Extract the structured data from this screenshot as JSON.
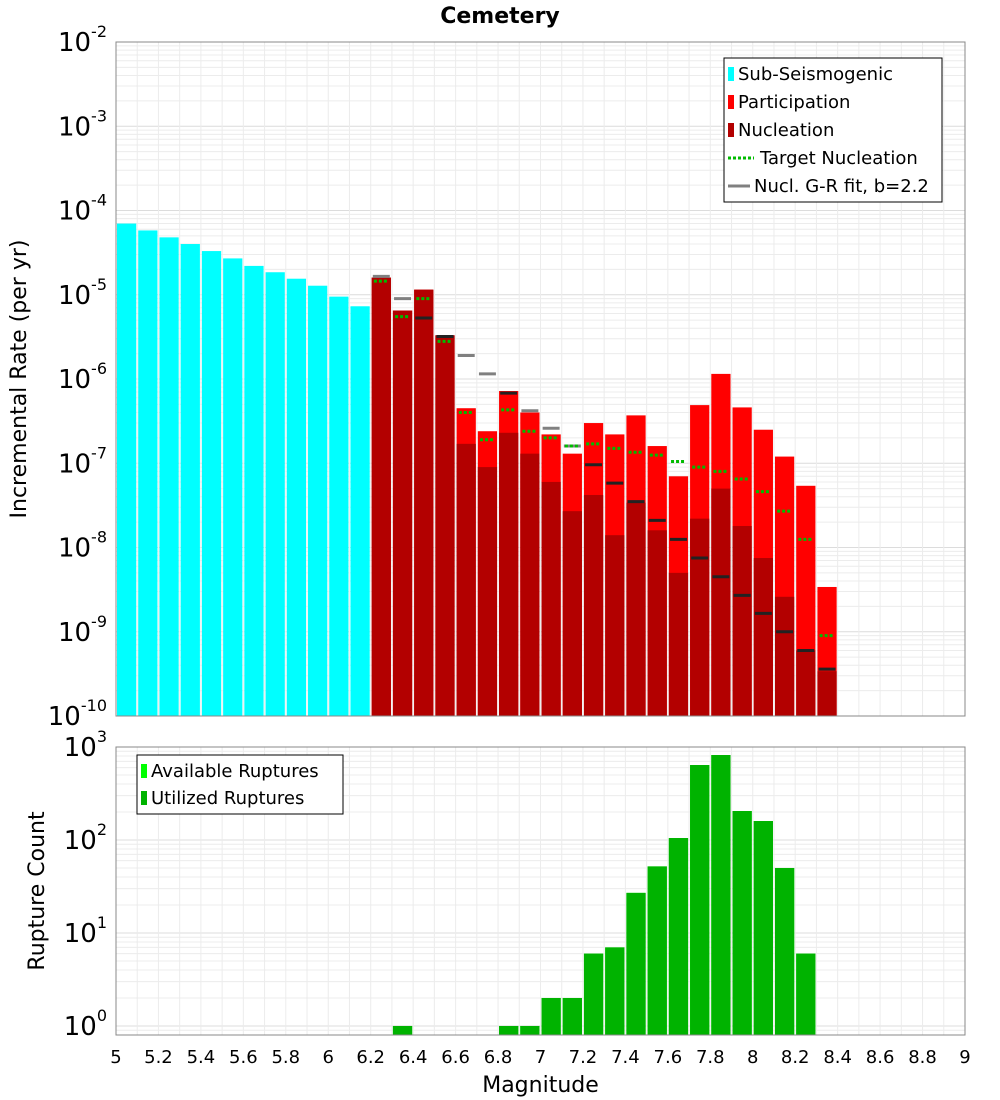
{
  "chart_data": [
    {
      "type": "bar",
      "title": "Cemetery",
      "xlabel": "",
      "ylabel": "Incremental Rate (per yr)",
      "yscale": "log",
      "ylim": [
        1e-10,
        0.01
      ],
      "xlim": [
        5,
        9
      ],
      "bar_width": 0.1,
      "grid": true,
      "legend_position": "top-right",
      "colors": {
        "sub_seismogenic": "#00ffff",
        "participation": "#ff0000",
        "nucleation": "#b30000",
        "target_nucleation": "#00bb00",
        "gr_fit": "#808080",
        "gr_fit_dark": "#222222"
      },
      "legend": [
        {
          "key": "sub_seismogenic",
          "label": "Sub-Seismogenic",
          "style": "bar"
        },
        {
          "key": "participation",
          "label": "Participation",
          "style": "bar"
        },
        {
          "key": "nucleation",
          "label": "Nucleation",
          "style": "bar"
        },
        {
          "key": "target_nucleation",
          "label": "Target Nucleation",
          "style": "dotted"
        },
        {
          "key": "gr_fit",
          "label": "Nucl. G-R fit, b=2.2",
          "style": "line"
        }
      ],
      "series": [
        {
          "name": "Sub-Seismogenic",
          "x": [
            5.05,
            5.15,
            5.25,
            5.35,
            5.45,
            5.55,
            5.65,
            5.75,
            5.85,
            5.95,
            6.05,
            6.15
          ],
          "values": [
            7e-05,
            5.8e-05,
            4.8e-05,
            4e-05,
            3.3e-05,
            2.7e-05,
            2.2e-05,
            1.85e-05,
            1.55e-05,
            1.28e-05,
            9.5e-06,
            7.3e-06
          ]
        },
        {
          "name": "Participation",
          "x": [
            6.25,
            6.35,
            6.45,
            6.55,
            6.65,
            6.75,
            6.85,
            6.95,
            7.05,
            7.15,
            7.25,
            7.35,
            7.45,
            7.55,
            7.65,
            7.75,
            7.85,
            7.95,
            8.05,
            8.15,
            8.25,
            8.35
          ],
          "values": [
            1.6e-05,
            6.5e-06,
            1.15e-05,
            3.3e-06,
            4.5e-07,
            2.4e-07,
            7.2e-07,
            4e-07,
            2.2e-07,
            1.3e-07,
            3e-07,
            2.2e-07,
            3.7e-07,
            1.6e-07,
            7e-08,
            4.9e-07,
            1.15e-06,
            4.6e-07,
            2.5e-07,
            1.2e-07,
            5.4e-08,
            3.4e-09
          ]
        },
        {
          "name": "Nucleation",
          "x": [
            6.25,
            6.35,
            6.45,
            6.55,
            6.65,
            6.75,
            6.85,
            6.95,
            7.05,
            7.15,
            7.25,
            7.35,
            7.45,
            7.55,
            7.65,
            7.75,
            7.85,
            7.95,
            8.05,
            8.15,
            8.25,
            8.35
          ],
          "values": [
            1.6e-05,
            6.5e-06,
            1.15e-05,
            3.3e-06,
            1.7e-07,
            9e-08,
            2.3e-07,
            1.3e-07,
            6e-08,
            2.7e-08,
            4.2e-08,
            1.4e-08,
            3.4e-08,
            1.6e-08,
            5e-09,
            2.2e-08,
            5e-08,
            1.8e-08,
            7.5e-09,
            2.6e-09,
            6e-10,
            3.4e-10
          ]
        },
        {
          "name": "Target Nucleation",
          "x": [
            6.25,
            6.35,
            6.45,
            6.55,
            6.65,
            6.75,
            6.85,
            6.95,
            7.05,
            7.15,
            7.25,
            7.35,
            7.45,
            7.55,
            7.65,
            7.75,
            7.85,
            7.95,
            8.05,
            8.15,
            8.25,
            8.35
          ],
          "values": [
            1.45e-05,
            5.5e-06,
            9e-06,
            2.8e-06,
            4e-07,
            1.9e-07,
            4.3e-07,
            2.4e-07,
            2e-07,
            1.6e-07,
            1.7e-07,
            1.5e-07,
            1.35e-07,
            1.25e-07,
            1.05e-07,
            9e-08,
            8e-08,
            6.5e-08,
            4.6e-08,
            2.7e-08,
            1.25e-08,
            9e-10
          ]
        },
        {
          "name": "Nucl. G-R fit, b=2.2",
          "x": [
            6.25,
            6.35,
            6.45,
            6.55,
            6.65,
            6.75,
            6.85,
            6.95,
            7.05,
            7.15,
            7.25,
            7.35,
            7.45,
            7.55,
            7.65,
            7.75,
            7.85,
            7.95,
            8.05,
            8.15,
            8.25,
            8.35
          ],
          "values": [
            1.65e-05,
            9e-06,
            5.3e-06,
            3.2e-06,
            1.9e-06,
            1.15e-06,
            6.8e-07,
            4.2e-07,
            2.6e-07,
            1.6e-07,
            9.6e-08,
            5.8e-08,
            3.5e-08,
            2.1e-08,
            1.25e-08,
            7.5e-09,
            4.5e-09,
            2.7e-09,
            1.65e-09,
            1e-09,
            6e-10,
            3.6e-10
          ]
        }
      ]
    },
    {
      "type": "bar",
      "title": "",
      "xlabel": "Magnitude",
      "ylabel": "Rupture Count",
      "yscale": "log",
      "ylim": [
        0.8,
        1000
      ],
      "xlim": [
        5,
        9
      ],
      "bar_width": 0.1,
      "grid": true,
      "legend_position": "top-left",
      "colors": {
        "available": "#00ff00",
        "utilized": "#00b300"
      },
      "legend": [
        {
          "key": "available",
          "label": "Available Ruptures",
          "style": "bar"
        },
        {
          "key": "utilized",
          "label": "Utilized Ruptures",
          "style": "bar"
        }
      ],
      "x_ticks": [
        "5",
        "5.2",
        "5.4",
        "5.6",
        "5.8",
        "6",
        "6.2",
        "6.4",
        "6.6",
        "6.8",
        "7",
        "7.2",
        "7.4",
        "7.6",
        "7.8",
        "8",
        "8.2",
        "8.4",
        "8.6",
        "8.8",
        "9"
      ],
      "series": [
        {
          "name": "Available Ruptures",
          "x": [
            6.35,
            6.85,
            6.95,
            7.05,
            7.15,
            7.25,
            7.35,
            7.45,
            7.55,
            7.65,
            7.75,
            7.85,
            7.95,
            8.05,
            8.15,
            8.25
          ],
          "values": [
            1,
            1,
            1,
            2,
            2,
            6,
            7,
            27,
            52,
            105,
            640,
            820,
            205,
            160,
            50,
            6
          ]
        },
        {
          "name": "Utilized Ruptures",
          "x": [
            6.35,
            6.85,
            6.95,
            7.05,
            7.15,
            7.25,
            7.35,
            7.45,
            7.55,
            7.65,
            7.75,
            7.85,
            7.95,
            8.05,
            8.15,
            8.25
          ],
          "values": [
            1,
            1,
            1,
            2,
            2,
            6,
            7,
            27,
            52,
            105,
            640,
            820,
            205,
            160,
            50,
            6
          ]
        }
      ]
    }
  ]
}
